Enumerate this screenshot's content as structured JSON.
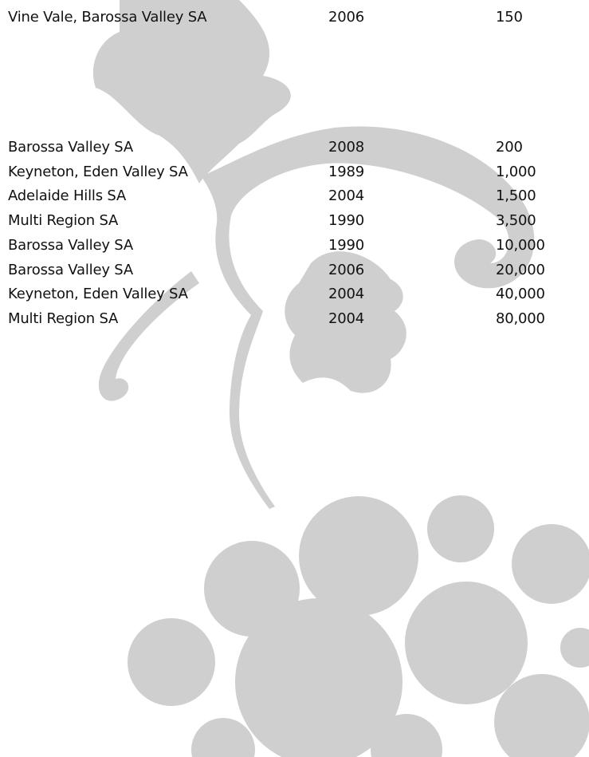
{
  "table": {
    "rows": [
      [
        "Vine Vale, Barossa Valley SA",
        "2006",
        "150"
      ],
      [
        "Barossa Valley SA",
        "2008",
        "200"
      ],
      [
        "Keyneton, Eden Valley SA",
        "1989",
        "1,000"
      ],
      [
        "Adelaide Hills SA",
        "2004",
        "1,500"
      ],
      [
        "Multi Region SA",
        "1990",
        "3,500"
      ],
      [
        "Barossa Valley SA",
        "1990",
        "10,000"
      ],
      [
        "Barossa Valley SA",
        "2006",
        "20,000"
      ],
      [
        "Keyneton, Eden Valley SA",
        "2004",
        "40,000"
      ],
      [
        "Multi Region SA",
        "2004",
        "80,000"
      ]
    ]
  }
}
